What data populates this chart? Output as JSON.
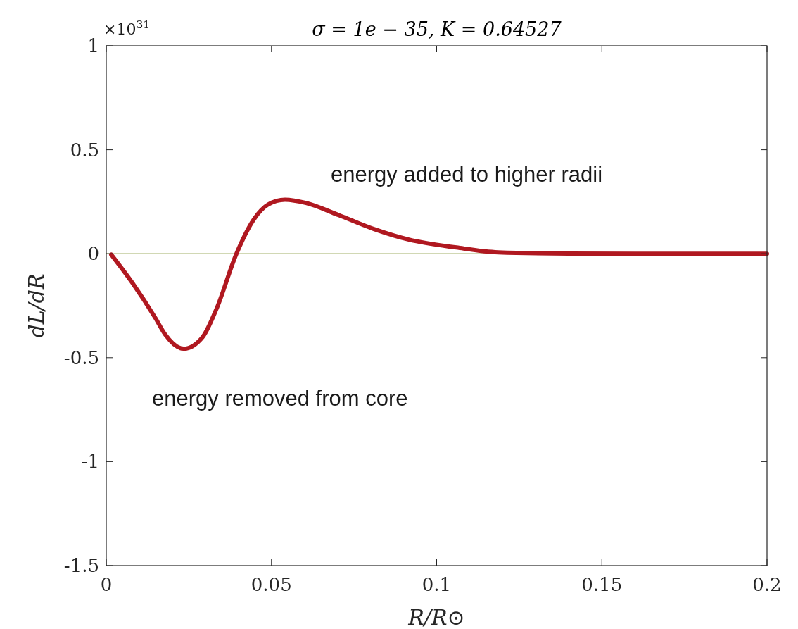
{
  "chart_data": {
    "type": "line",
    "title": "σ = 1e − 35, K = 0.64527",
    "xlabel": "R/R⊙",
    "ylabel": "dL/dR",
    "annotations": [
      "×10$^{31}$",
      "energy added to higher radii",
      "energy removed from core"
    ],
    "xlim": [
      0,
      0.2
    ],
    "xticks": [
      0,
      0.05,
      0.1,
      0.15,
      0.2
    ],
    "ylim": [
      -1.5,
      1
    ],
    "yticks": [
      -1.5,
      -1,
      -0.5,
      0,
      0.5,
      1
    ],
    "grid": false,
    "line_style": "solid",
    "marker": "none",
    "ref_lines": [
      {
        "axis": "y",
        "value": 0,
        "color": "#a4b26a"
      }
    ],
    "series": [
      {
        "color": "#b01820",
        "x": [
          0.0015,
          0.0079,
          0.0149,
          0.0179,
          0.0234,
          0.0292,
          0.0334,
          0.0394,
          0.0447,
          0.049,
          0.0541,
          0.0605,
          0.0703,
          0.081,
          0.0916,
          0.106,
          0.1186,
          0.14,
          0.16,
          0.2
        ],
        "values": [
          -0.004,
          -0.14,
          -0.31,
          -0.39,
          -0.457,
          -0.4,
          -0.264,
          0,
          0.166,
          0.237,
          0.26,
          0.244,
          0.186,
          0.119,
          0.068,
          0.03,
          0.007,
          0.001,
          0,
          0
        ]
      }
    ]
  }
}
